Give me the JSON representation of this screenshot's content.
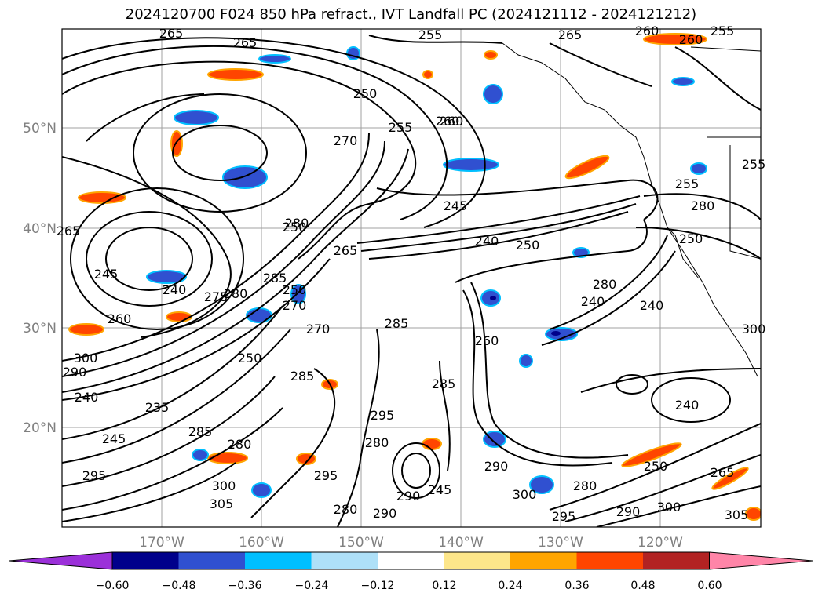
{
  "title": "2024120700 F024 850 hPa refract., IVT Landfall PC (2024121112 - 2024121212)",
  "lat_labels": [
    "50°N",
    "40°N",
    "30°N",
    "20°N"
  ],
  "lon_labels": [
    "170°W",
    "160°W",
    "150°W",
    "140°W",
    "130°W",
    "120°W"
  ],
  "contour_labels": [
    "265",
    "265",
    "255",
    "265",
    "250",
    "255",
    "260",
    "270",
    "265",
    "250",
    "245",
    "240",
    "250",
    "265",
    "280",
    "285",
    "280",
    "245",
    "240",
    "260",
    "275",
    "250",
    "250",
    "270",
    "285",
    "260",
    "240",
    "240",
    "280",
    "285",
    "240",
    "285",
    "295",
    "300",
    "290",
    "280",
    "240",
    "235",
    "245",
    "285",
    "280",
    "295",
    "300",
    "305",
    "295",
    "290",
    "290",
    "300",
    "295",
    "280",
    "290",
    "300",
    "305",
    "250",
    "265",
    "260",
    "255",
    "260",
    "260",
    "255",
    "255",
    "280",
    "300",
    "270",
    "290",
    "280",
    "245",
    "250"
  ],
  "colorbar": {
    "colors": [
      "#9b30d9",
      "#00008b",
      "#3050d0",
      "#00bfff",
      "#aee0f8",
      "#ffffff",
      "#fde68a",
      "#ffa500",
      "#ff4500",
      "#b22222",
      "#ff85a8"
    ],
    "labels": [
      "−0.60",
      "−0.48",
      "−0.36",
      "−0.24",
      "−0.12",
      "0.12",
      "0.24",
      "0.36",
      "0.48",
      "0.60"
    ]
  }
}
